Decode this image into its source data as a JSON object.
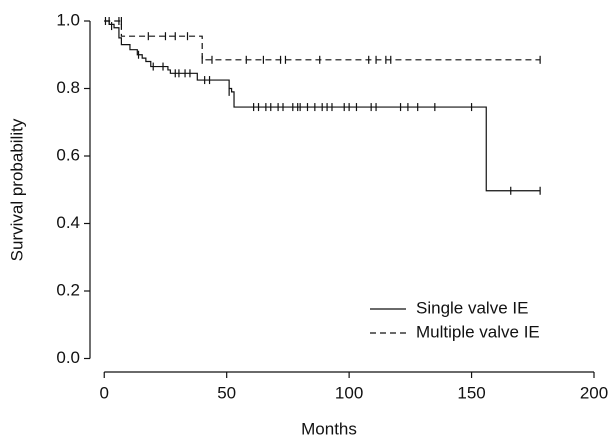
{
  "chart_data": {
    "type": "line",
    "drawstyle": "steps-post",
    "xlabel": "Months",
    "ylabel": "Survival probability",
    "xlim": [
      -5,
      200
    ],
    "ylim": [
      -0.04,
      1.0
    ],
    "xticks": [
      0,
      50,
      100,
      150,
      200
    ],
    "yticks": [
      {
        "value": 0,
        "label": "0.0"
      },
      {
        "value": 0.2,
        "label": "0.2"
      },
      {
        "value": 0.4,
        "label": "0.4"
      },
      {
        "value": 0.6,
        "label": "0.6"
      },
      {
        "value": 0.8,
        "label": "0.8"
      },
      {
        "value": 1,
        "label": "1.0"
      }
    ],
    "legend": "lower right",
    "series": [
      {
        "name": "Single valve IE",
        "color": "#111111",
        "linestyle": "solid",
        "x": [
          0,
          2,
          4,
          6,
          7,
          10.5,
          13.5,
          15.5,
          17,
          19,
          26,
          27,
          38,
          51,
          52,
          53,
          156,
          178
        ],
        "values": [
          1,
          0.99,
          0.98,
          0.95,
          0.93,
          0.915,
          0.9,
          0.89,
          0.88,
          0.865,
          0.855,
          0.845,
          0.825,
          0.8,
          0.79,
          0.745,
          0.497,
          0.497
        ],
        "censor_x": [
          3,
          14,
          20,
          24,
          29,
          30.5,
          33,
          35,
          41,
          43,
          51,
          61,
          63,
          66,
          68,
          71,
          73,
          77,
          79,
          80,
          83,
          86,
          89,
          91,
          93,
          98,
          100,
          103,
          109,
          111,
          121,
          124,
          128,
          135,
          150,
          166,
          178
        ],
        "censor_values": [
          0.985,
          0.9,
          0.865,
          0.865,
          0.845,
          0.845,
          0.845,
          0.845,
          0.825,
          0.825,
          0.79,
          0.745,
          0.745,
          0.745,
          0.745,
          0.745,
          0.745,
          0.745,
          0.745,
          0.745,
          0.745,
          0.745,
          0.745,
          0.745,
          0.745,
          0.745,
          0.745,
          0.745,
          0.745,
          0.745,
          0.745,
          0.745,
          0.745,
          0.745,
          0.745,
          0.497,
          0.497
        ]
      },
      {
        "name": "Multiple valve IE",
        "color": "#111111",
        "linestyle": "dashed",
        "x": [
          0,
          7,
          40,
          178
        ],
        "values": [
          1,
          0.955,
          0.885,
          0.885
        ],
        "censor_x": [
          0.5,
          2,
          6,
          7,
          18,
          25,
          29,
          34,
          40,
          44,
          58,
          65,
          72,
          74,
          88,
          108,
          111,
          115,
          117,
          178
        ],
        "censor_values": [
          1,
          1,
          1,
          1,
          0.955,
          0.955,
          0.955,
          0.955,
          0.885,
          0.885,
          0.885,
          0.885,
          0.885,
          0.885,
          0.885,
          0.885,
          0.885,
          0.885,
          0.885,
          0.885
        ]
      }
    ]
  }
}
